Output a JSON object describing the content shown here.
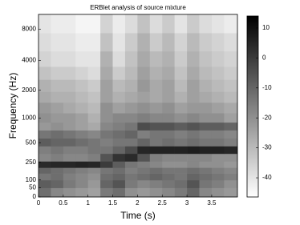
{
  "chart_data": {
    "type": "heatmap",
    "title": "ERBlet analysis of source mixture",
    "xlabel": "Time (s)",
    "ylabel": "Frequency (Hz)",
    "xlim": [
      0,
      4.02
    ],
    "xticks": [
      0,
      0.5,
      1,
      1.5,
      2,
      2.5,
      3,
      3.5
    ],
    "yscale": "erb",
    "ylim": [
      0,
      11025
    ],
    "yticks": [
      0,
      50,
      100,
      250,
      500,
      1000,
      2000,
      4000,
      8000
    ],
    "colormap": "gray_r",
    "clim": [
      -46.4,
      14
    ],
    "cticks": [
      10,
      0,
      -10,
      -20,
      -30,
      -40
    ],
    "x": [
      0.125,
      0.375,
      0.625,
      0.875,
      1.125,
      1.375,
      1.625,
      1.875,
      2.125,
      2.375,
      2.625,
      2.875,
      3.125,
      3.375,
      3.625,
      3.875
    ],
    "y": [
      25,
      75,
      125,
      175,
      225,
      300,
      400,
      500,
      650,
      800,
      1000,
      1300,
      1700,
      2200,
      3000,
      4000,
      6000,
      9000
    ],
    "values": [
      [
        -12,
        -18,
        -20,
        -22,
        -24,
        -15,
        -12,
        -20,
        -22,
        -20,
        -18,
        -15,
        -10,
        -18,
        -20,
        -22
      ],
      [
        -8,
        -10,
        -15,
        -18,
        -22,
        -10,
        -6,
        -15,
        -18,
        -16,
        -14,
        -12,
        -6,
        -14,
        -16,
        -20
      ],
      [
        -14,
        -12,
        -16,
        -18,
        -20,
        -12,
        -10,
        -14,
        -12,
        -10,
        -12,
        -14,
        -10,
        -12,
        -14,
        -16
      ],
      [
        -10,
        -12,
        -14,
        -16,
        -18,
        -14,
        -12,
        -16,
        -14,
        -12,
        -14,
        -14,
        -12,
        -14,
        -16,
        -18
      ],
      [
        4,
        5,
        5,
        6,
        5,
        0,
        -8,
        -14,
        -16,
        -18,
        -20,
        -20,
        -18,
        -20,
        -20,
        -22
      ],
      [
        -18,
        -16,
        -18,
        -18,
        -16,
        -6,
        2,
        4,
        -6,
        -16,
        -18,
        -18,
        -18,
        -18,
        -20,
        -20
      ],
      [
        -16,
        -14,
        -16,
        -16,
        -14,
        -14,
        -10,
        -4,
        5,
        6,
        6,
        6,
        7,
        6,
        6,
        5
      ],
      [
        -8,
        -10,
        -10,
        -12,
        -14,
        -16,
        -14,
        -14,
        -10,
        -14,
        -12,
        -14,
        -12,
        -14,
        -14,
        -16
      ],
      [
        -14,
        -12,
        -14,
        -16,
        -18,
        -14,
        -12,
        -10,
        -16,
        -14,
        -14,
        -16,
        -14,
        -16,
        -16,
        -18
      ],
      [
        -22,
        -20,
        -22,
        -24,
        -26,
        -18,
        -16,
        -14,
        -4,
        -6,
        -6,
        -8,
        -6,
        -8,
        -8,
        -10
      ],
      [
        -20,
        -22,
        -22,
        -24,
        -28,
        -20,
        -18,
        -18,
        -16,
        -18,
        -18,
        -20,
        -18,
        -20,
        -20,
        -24
      ],
      [
        -22,
        -24,
        -26,
        -28,
        -30,
        -20,
        -24,
        -22,
        -20,
        -22,
        -20,
        -24,
        -22,
        -22,
        -24,
        -26
      ],
      [
        -26,
        -28,
        -28,
        -30,
        -32,
        -24,
        -28,
        -26,
        -24,
        -26,
        -24,
        -28,
        -24,
        -26,
        -28,
        -30
      ],
      [
        -28,
        -30,
        -30,
        -32,
        -34,
        -24,
        -30,
        -28,
        -22,
        -26,
        -24,
        -30,
        -24,
        -28,
        -30,
        -32
      ],
      [
        -32,
        -34,
        -34,
        -36,
        -38,
        -26,
        -34,
        -30,
        -24,
        -28,
        -26,
        -32,
        -26,
        -30,
        -32,
        -34
      ],
      [
        -36,
        -38,
        -38,
        -40,
        -40,
        -28,
        -38,
        -32,
        -26,
        -30,
        -28,
        -34,
        -28,
        -32,
        -34,
        -36
      ],
      [
        -38,
        -40,
        -40,
        -42,
        -42,
        -32,
        -40,
        -34,
        -28,
        -34,
        -30,
        -36,
        -30,
        -34,
        -36,
        -38
      ],
      [
        -40,
        -42,
        -42,
        -44,
        -44,
        -36,
        -42,
        -38,
        -32,
        -38,
        -34,
        -40,
        -34,
        -38,
        -40,
        -42
      ]
    ]
  }
}
